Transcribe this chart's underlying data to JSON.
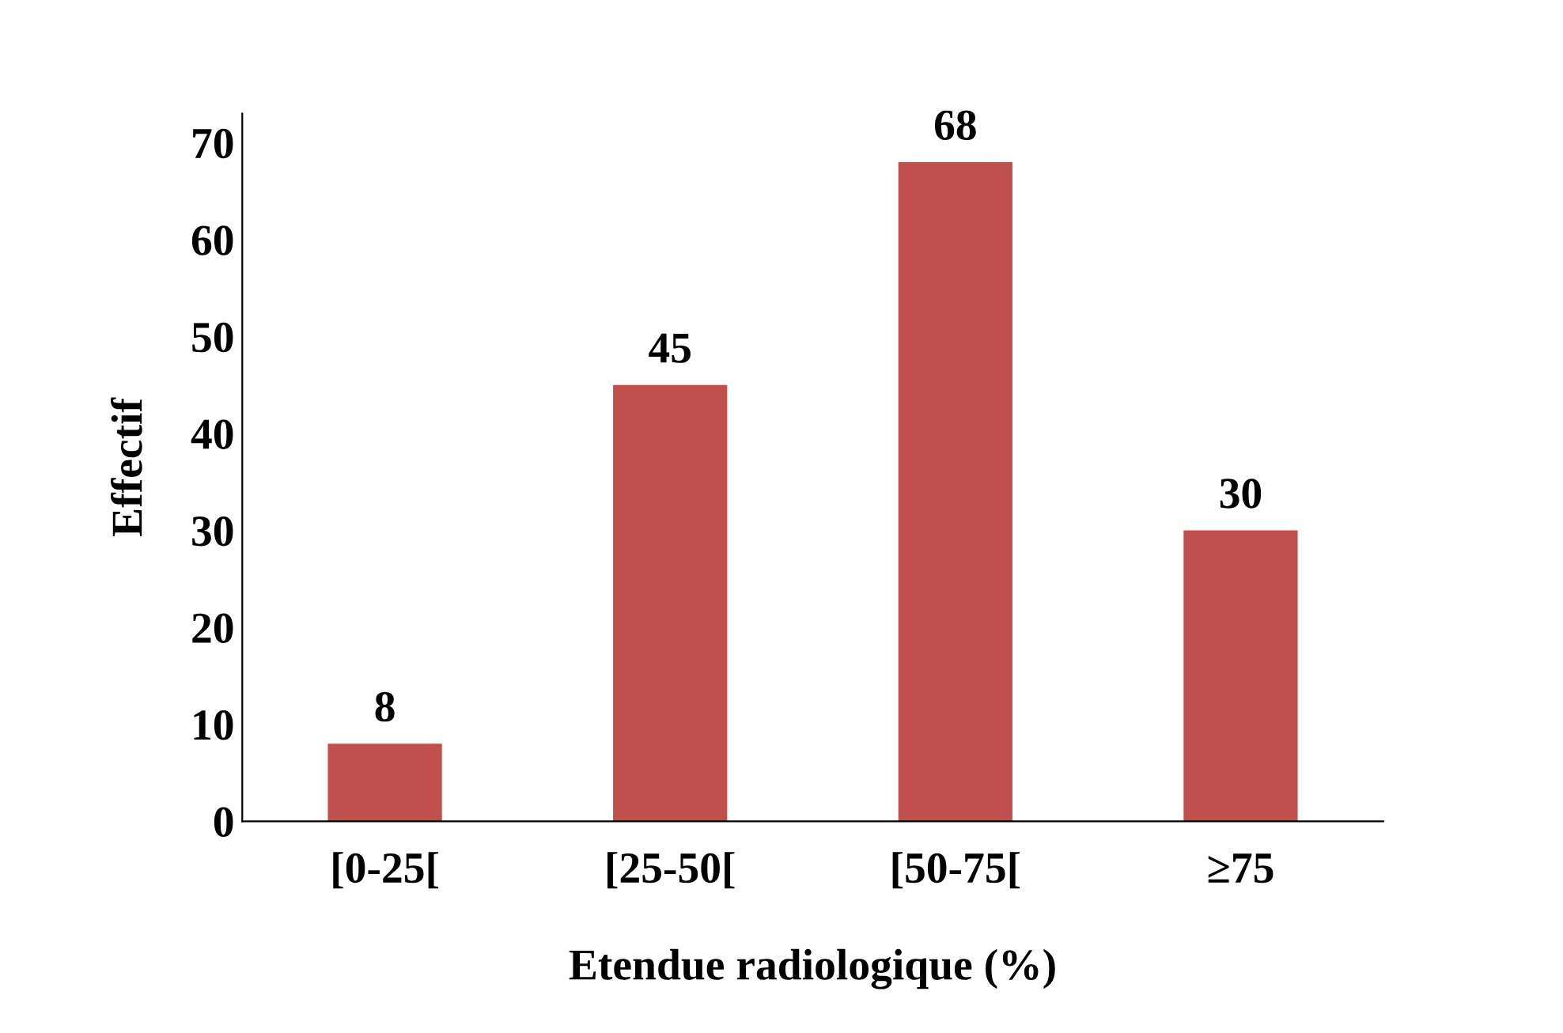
{
  "chart_data": {
    "type": "bar",
    "xlabel": "Etendue radiologique (%)",
    "ylabel": "Effectif",
    "categories": [
      "[0-25[",
      "[25-50[",
      "[50-75[",
      "≥75"
    ],
    "values": [
      8,
      45,
      68,
      30
    ],
    "color": "#c0504d",
    "ylim": [
      0,
      73
    ],
    "yticks": [
      0,
      10,
      20,
      30,
      40,
      50,
      60,
      70
    ],
    "data_labels": true,
    "grid": false,
    "legend": false
  }
}
